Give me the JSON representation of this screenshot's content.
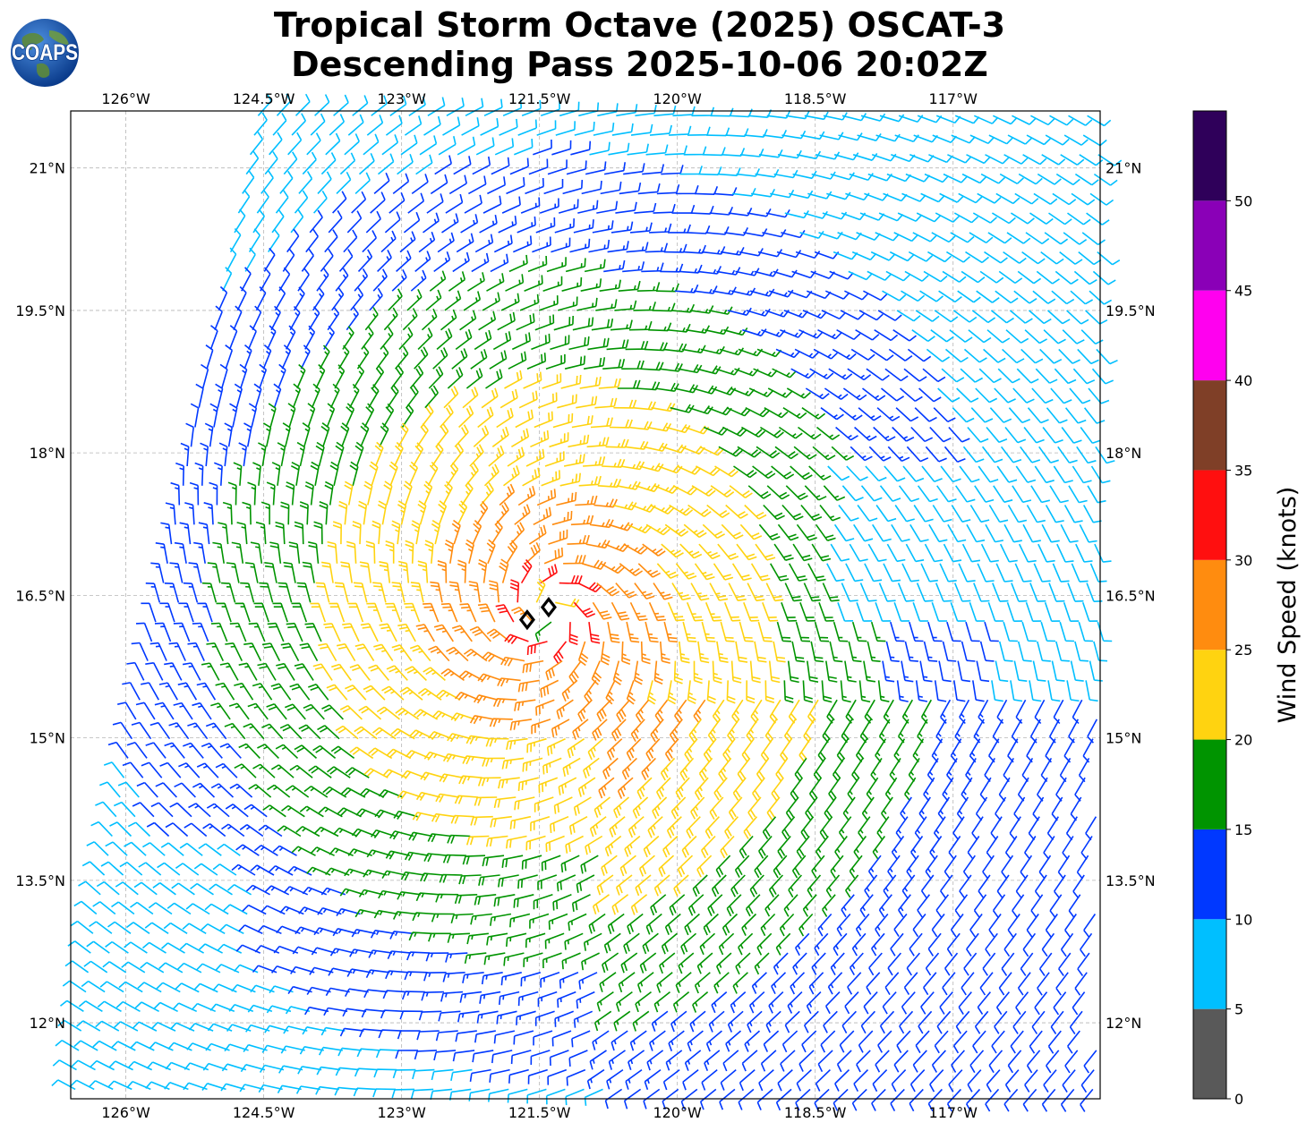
{
  "title": {
    "line1": "Tropical Storm Octave (2025) OSCAT-3",
    "line2": "Descending Pass 2025-10-06 20:02Z"
  },
  "logo": {
    "text": "COAPS",
    "icon": "earth-globe-icon"
  },
  "map": {
    "lon_range": [
      -126.6,
      -115.4
    ],
    "lat_range": [
      11.2,
      21.6
    ],
    "lon_ticks": [
      {
        "value": -126.0,
        "label": "126°W"
      },
      {
        "value": -124.5,
        "label": "124.5°W"
      },
      {
        "value": -123.0,
        "label": "123°W"
      },
      {
        "value": -121.5,
        "label": "121.5°W"
      },
      {
        "value": -120.0,
        "label": "120°W"
      },
      {
        "value": -118.5,
        "label": "118.5°W"
      },
      {
        "value": -117.0,
        "label": "117°W"
      }
    ],
    "lat_ticks": [
      {
        "value": 21.0,
        "label": "21°N"
      },
      {
        "value": 19.5,
        "label": "19.5°N"
      },
      {
        "value": 18.0,
        "label": "18°N"
      },
      {
        "value": 16.5,
        "label": "16.5°N"
      },
      {
        "value": 15.0,
        "label": "15°N"
      },
      {
        "value": 13.5,
        "label": "13.5°N"
      },
      {
        "value": 12.0,
        "label": "12°N"
      }
    ],
    "grid": true,
    "storm_center": {
      "lon": -121.4,
      "lat": 16.3
    },
    "swath_west_edge": [
      [
        -124.6,
        21.6
      ],
      [
        -126.4,
        13.0
      ],
      [
        -126.6,
        11.4
      ]
    ]
  },
  "colorbar": {
    "label": "Wind Speed (knots)",
    "bins": [
      {
        "min": 0,
        "max": 5,
        "color": "#595959"
      },
      {
        "min": 5,
        "max": 10,
        "color": "#00bfff"
      },
      {
        "min": 10,
        "max": 15,
        "color": "#0038ff"
      },
      {
        "min": 15,
        "max": 20,
        "color": "#009400"
      },
      {
        "min": 20,
        "max": 25,
        "color": "#ffd310"
      },
      {
        "min": 25,
        "max": 30,
        "color": "#ff8c0f"
      },
      {
        "min": 30,
        "max": 35,
        "color": "#ff0f0f"
      },
      {
        "min": 35,
        "max": 40,
        "color": "#7f3f27"
      },
      {
        "min": 40,
        "max": 45,
        "color": "#ff00ef"
      },
      {
        "min": 45,
        "max": 50,
        "color": "#8a00b7"
      },
      {
        "min": 50,
        "max": 55,
        "color": "#2f005a"
      }
    ],
    "ticks": [
      "0",
      "5",
      "10",
      "15",
      "20",
      "25",
      "30",
      "35",
      "40",
      "45",
      "50"
    ]
  }
}
